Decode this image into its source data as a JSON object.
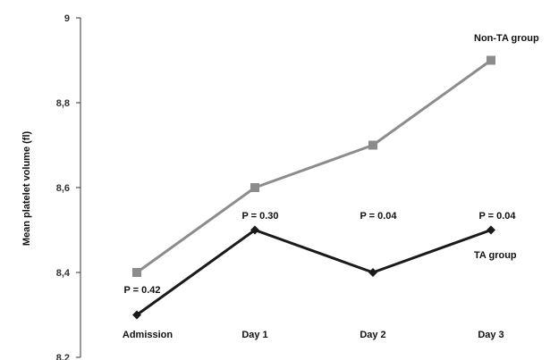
{
  "chart_data": {
    "type": "line",
    "title": "",
    "xlabel": "",
    "ylabel": "Mean platelet volume (fl)",
    "categories": [
      "Admission",
      "Day 1",
      "Day 2",
      "Day 3"
    ],
    "ylim": [
      8.2,
      9.0
    ],
    "yticks": [
      "8,2",
      "8,4",
      "8,6",
      "8,8",
      "9"
    ],
    "ytick_values": [
      8.2,
      8.4,
      8.6,
      8.8,
      9.0
    ],
    "grid": false,
    "series": [
      {
        "name": "Non-TA group",
        "values": [
          8.4,
          8.6,
          8.7,
          8.9
        ],
        "color": "#8c8c8c",
        "marker": "square"
      },
      {
        "name": "TA group",
        "values": [
          8.3,
          8.5,
          8.4,
          8.5
        ],
        "color": "#1a1a1a",
        "marker": "diamond"
      }
    ],
    "annotations": [
      "P = 0.42",
      "P = 0.30",
      "P = 0.04",
      "P = 0.04"
    ]
  }
}
